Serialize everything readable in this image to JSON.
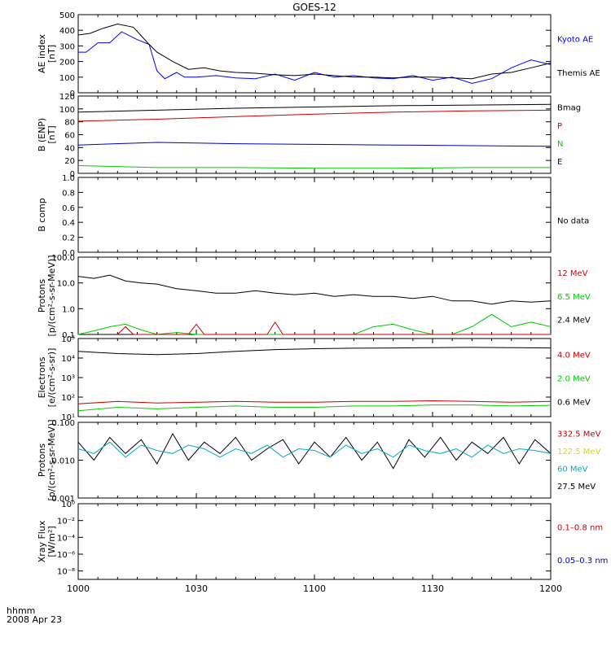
{
  "title": "GOES-12",
  "x_axis": {
    "tick_labels": [
      "1000",
      "1030",
      "1100",
      "1130",
      "1200"
    ],
    "corner_line1": "hhmm",
    "corner_line2": "2008 Apr 23"
  },
  "chart_data": [
    {
      "type": "line",
      "ylabel_line1": "AE index",
      "ylabel_line2": "[nT]",
      "ylim": [
        0,
        500
      ],
      "scale": "linear",
      "ytick_values": [
        0,
        100,
        200,
        300,
        400,
        500
      ],
      "ytick_labels": [
        "0",
        "100",
        "200",
        "300",
        "400",
        "500"
      ],
      "series": [
        {
          "name": "Kyoto AE",
          "color": "#0000ff",
          "x": [
            0,
            2,
            5,
            8,
            11,
            15,
            18,
            20,
            22,
            25,
            27,
            30,
            35,
            40,
            45,
            50,
            55,
            60,
            65,
            70,
            75,
            80,
            85,
            90,
            95,
            100,
            105,
            110,
            115,
            120
          ],
          "y": [
            260,
            260,
            320,
            320,
            390,
            340,
            310,
            140,
            90,
            130,
            100,
            100,
            110,
            95,
            90,
            120,
            80,
            130,
            100,
            110,
            95,
            90,
            110,
            80,
            100,
            60,
            90,
            160,
            210,
            180
          ]
        },
        {
          "name": "Themis AE",
          "color": "#000000",
          "x": [
            0,
            3,
            6,
            10,
            14,
            18,
            20,
            24,
            28,
            32,
            36,
            40,
            45,
            50,
            55,
            60,
            65,
            70,
            75,
            80,
            85,
            90,
            95,
            100,
            105,
            110,
            115,
            120
          ],
          "y": [
            370,
            380,
            410,
            440,
            420,
            310,
            260,
            200,
            150,
            160,
            140,
            130,
            125,
            115,
            110,
            120,
            110,
            100,
            100,
            95,
            100,
            100,
            95,
            90,
            120,
            130,
            160,
            190
          ]
        }
      ],
      "right_labels": [
        {
          "text": "Kyoto AE",
          "color": "#0000ff"
        },
        {
          "text": "Themis AE",
          "color": "#000000"
        }
      ]
    },
    {
      "type": "line",
      "ylabel_line1": "B (ENP)",
      "ylabel_line2": "[nT]",
      "ylim": [
        0,
        120
      ],
      "scale": "linear",
      "ytick_values": [
        0,
        20,
        40,
        60,
        80,
        100,
        120
      ],
      "ytick_labels": [
        "0",
        "20",
        "40",
        "60",
        "80",
        "100",
        "120"
      ],
      "series": [
        {
          "name": "Bmag",
          "color": "#000000",
          "x": [
            0,
            20,
            40,
            60,
            80,
            100,
            120
          ],
          "y": [
            95,
            98,
            101,
            103,
            105,
            106,
            107
          ]
        },
        {
          "name": "P",
          "color": "#cc0000",
          "x": [
            0,
            20,
            40,
            60,
            80,
            100,
            120
          ],
          "y": [
            81,
            84,
            88,
            92,
            95,
            97,
            98
          ]
        },
        {
          "name": "N",
          "color": "#00cc00",
          "x": [
            0,
            20,
            40,
            60,
            80,
            100,
            120
          ],
          "y": [
            12,
            9,
            9,
            8,
            8,
            9,
            9
          ]
        },
        {
          "name": "E",
          "color": "#0000cc",
          "x": [
            0,
            20,
            40,
            60,
            80,
            100,
            120
          ],
          "y": [
            44,
            48,
            46,
            45,
            44,
            43,
            42
          ]
        }
      ],
      "right_labels": [
        {
          "text": "Bmag",
          "color": "#000000"
        },
        {
          "text": "P",
          "color": "#cc0000"
        },
        {
          "text": "N",
          "color": "#00cc00"
        },
        {
          "text": "E",
          "color": "#0000cc"
        }
      ]
    },
    {
      "type": "line",
      "ylabel_line1": "B comp",
      "ylabel_line2": "",
      "ylim": [
        0,
        1
      ],
      "scale": "linear",
      "ytick_values": [
        0,
        0.2,
        0.4,
        0.6,
        0.8,
        1.0
      ],
      "ytick_labels": [
        "0.0",
        "0.2",
        "0.4",
        "0.6",
        "0.8",
        "1.0"
      ],
      "series": [],
      "right_labels": [
        {
          "text": "No data",
          "color": "#000000"
        }
      ]
    },
    {
      "type": "line",
      "ylabel_line1": "Protons",
      "ylabel_line2": "[p/(cm²-s-sr-MeV)]",
      "ylim": [
        0.1,
        100
      ],
      "scale": "log",
      "ytick_values": [
        0.1,
        1,
        10,
        100
      ],
      "ytick_labels": [
        "0.1",
        "1.0",
        "10.0",
        "100.0"
      ],
      "series": [
        {
          "name": "2.4 MeV",
          "color": "#000000",
          "x": [
            0,
            4,
            8,
            12,
            16,
            20,
            25,
            30,
            35,
            40,
            45,
            50,
            55,
            60,
            65,
            70,
            75,
            80,
            85,
            90,
            95,
            100,
            105,
            110,
            115,
            120
          ],
          "y": [
            18,
            15,
            20,
            12,
            10,
            9,
            6,
            5,
            4,
            4,
            5,
            4,
            3.5,
            4,
            3,
            3.5,
            3,
            3,
            2.5,
            3,
            2,
            2,
            1.5,
            2,
            1.8,
            2
          ]
        },
        {
          "name": "6.5 MeV",
          "color": "#00cc00",
          "x": [
            0,
            5,
            8,
            12,
            16,
            20,
            25,
            30,
            35,
            40,
            45,
            50,
            55,
            60,
            65,
            70,
            75,
            80,
            85,
            90,
            95,
            100,
            105,
            110,
            115,
            120
          ],
          "y": [
            0.1,
            0.15,
            0.2,
            0.25,
            0.15,
            0.1,
            0.12,
            0.1,
            0.1,
            0.1,
            0.1,
            0.1,
            0.1,
            0.1,
            0.1,
            0.1,
            0.2,
            0.25,
            0.15,
            0.1,
            0.1,
            0.2,
            0.6,
            0.2,
            0.3,
            0.2
          ]
        },
        {
          "name": "12 MeV",
          "color": "#cc0000",
          "x": [
            10,
            12,
            14,
            28,
            30,
            32,
            48,
            50,
            52,
            120
          ],
          "y": [
            0.1,
            0.2,
            0.1,
            0.1,
            0.25,
            0.1,
            0.1,
            0.3,
            0.1,
            0.1
          ]
        }
      ],
      "right_labels": [
        {
          "text": "12 MeV",
          "color": "#cc0000"
        },
        {
          "text": "6.5 MeV",
          "color": "#00cc00"
        },
        {
          "text": "2.4 MeV",
          "color": "#000000"
        }
      ]
    },
    {
      "type": "line",
      "ylabel_line1": "Electrons",
      "ylabel_line2": "[e/(cm²-s-sr)]",
      "ylim": [
        10,
        100000
      ],
      "scale": "log",
      "ytick_values": [
        10,
        100,
        1000,
        10000,
        100000
      ],
      "ytick_labels": [
        "10¹",
        "10²",
        "10³",
        "10⁴",
        "10⁵"
      ],
      "series": [
        {
          "name": "0.6 MeV",
          "color": "#000000",
          "x": [
            0,
            10,
            20,
            30,
            40,
            50,
            60,
            70,
            80,
            90,
            100,
            110,
            120
          ],
          "y": [
            22000,
            17000,
            15000,
            17000,
            22000,
            27000,
            30000,
            32000,
            33000,
            34000,
            35000,
            34000,
            33000
          ]
        },
        {
          "name": "2.0 MeV",
          "color": "#00cc00",
          "x": [
            0,
            10,
            20,
            30,
            40,
            50,
            60,
            70,
            80,
            90,
            100,
            110,
            120
          ],
          "y": [
            20,
            30,
            25,
            30,
            35,
            30,
            30,
            35,
            35,
            40,
            40,
            35,
            38
          ]
        },
        {
          "name": "4.0 MeV",
          "color": "#cc0000",
          "x": [
            0,
            10,
            20,
            30,
            40,
            50,
            60,
            70,
            80,
            90,
            100,
            110,
            120
          ],
          "y": [
            45,
            60,
            50,
            55,
            60,
            55,
            55,
            60,
            60,
            65,
            60,
            55,
            60
          ]
        }
      ],
      "right_labels": [
        {
          "text": "4.0 MeV",
          "color": "#cc0000"
        },
        {
          "text": "2.0 MeV",
          "color": "#00cc00"
        },
        {
          "text": "0.6 MeV",
          "color": "#000000"
        }
      ]
    },
    {
      "type": "line",
      "ylabel_line1": "Protons",
      "ylabel_line2": "[p/(cm²-s-sr-MeV)]",
      "ylim": [
        0.001,
        0.1
      ],
      "scale": "log",
      "ytick_values": [
        0.001,
        0.01,
        0.1
      ],
      "ytick_labels": [
        "0.001",
        "0.010",
        "0.100"
      ],
      "series": [
        {
          "name": "27.5 MeV",
          "color": "#000000",
          "x": [
            0,
            4,
            8,
            12,
            16,
            20,
            24,
            28,
            32,
            36,
            40,
            44,
            48,
            52,
            56,
            60,
            64,
            68,
            72,
            76,
            80,
            84,
            88,
            92,
            96,
            100,
            104,
            108,
            112,
            116,
            120
          ],
          "y": [
            0.03,
            0.01,
            0.04,
            0.015,
            0.035,
            0.008,
            0.05,
            0.01,
            0.03,
            0.015,
            0.04,
            0.01,
            0.02,
            0.035,
            0.008,
            0.03,
            0.012,
            0.04,
            0.01,
            0.03,
            0.006,
            0.035,
            0.012,
            0.04,
            0.01,
            0.03,
            0.015,
            0.04,
            0.008,
            0.035,
            0.015
          ]
        },
        {
          "name": "60 MeV",
          "color": "#00aacc",
          "x": [
            0,
            4,
            8,
            12,
            16,
            20,
            24,
            28,
            32,
            36,
            40,
            44,
            48,
            52,
            56,
            60,
            64,
            68,
            72,
            76,
            80,
            84,
            88,
            92,
            96,
            100,
            104,
            108,
            112,
            116,
            120
          ],
          "y": [
            0.02,
            0.015,
            0.03,
            0.012,
            0.025,
            0.018,
            0.015,
            0.025,
            0.02,
            0.012,
            0.02,
            0.015,
            0.025,
            0.012,
            0.02,
            0.018,
            0.012,
            0.025,
            0.015,
            0.02,
            0.012,
            0.025,
            0.018,
            0.015,
            0.02,
            0.012,
            0.025,
            0.015,
            0.02,
            0.018,
            0.015
          ]
        }
      ],
      "right_labels": [
        {
          "text": "332.5 MeV",
          "color": "#cc0000"
        },
        {
          "text": "122.5 MeV",
          "color": "#dddd00"
        },
        {
          "text": "60 MeV",
          "color": "#00aacc"
        },
        {
          "text": "27.5 MeV",
          "color": "#000000"
        }
      ]
    },
    {
      "type": "line",
      "ylabel_line1": "Xray Flux",
      "ylabel_line2": "[W/m²]",
      "ylim": [
        1e-09,
        1
      ],
      "scale": "log",
      "ytick_values": [
        1e-08,
        1e-06,
        0.0001,
        0.01,
        1
      ],
      "ytick_labels": [
        "10⁻⁸",
        "10⁻⁶",
        "10⁻⁴",
        "10⁻²",
        "10⁰"
      ],
      "series": [],
      "right_labels": [
        {
          "text": "0.1–0.8 nm",
          "color": "#cc0000"
        },
        {
          "text": "0.05–0.3 nm",
          "color": "#0000cc"
        }
      ]
    }
  ]
}
